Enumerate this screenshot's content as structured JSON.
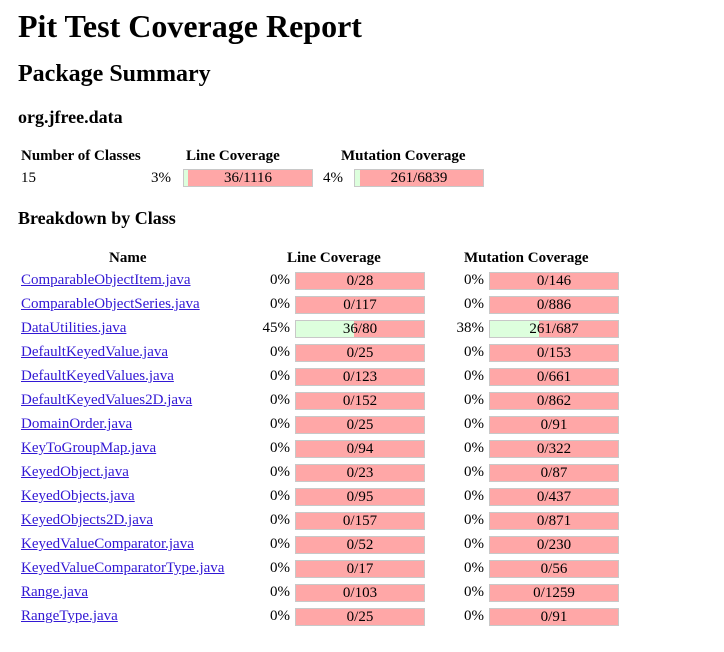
{
  "report_title": "Pit Test Coverage Report",
  "package_summary_heading": "Package Summary",
  "package_name": "org.jfree.data",
  "summary": {
    "headers": {
      "classes": "Number of Classes",
      "line": "Line Coverage",
      "mutation": "Mutation Coverage"
    },
    "classes": "15",
    "line_pct": "3%",
    "line_label": "36/1116",
    "line_fraction": 0.03,
    "mutation_pct": "4%",
    "mutation_label": "261/6839",
    "mutation_fraction": 0.04
  },
  "breakdown_heading": "Breakdown by Class",
  "breakdown_headers": {
    "name": "Name",
    "line": "Line Coverage",
    "mutation": "Mutation Coverage"
  },
  "classes": [
    {
      "name": "ComparableObjectItem.java",
      "line_pct": "0%",
      "line_label": "0/28",
      "line_fraction": 0,
      "mut_pct": "0%",
      "mut_label": "0/146",
      "mut_fraction": 0
    },
    {
      "name": "ComparableObjectSeries.java",
      "line_pct": "0%",
      "line_label": "0/117",
      "line_fraction": 0,
      "mut_pct": "0%",
      "mut_label": "0/886",
      "mut_fraction": 0
    },
    {
      "name": "DataUtilities.java",
      "line_pct": "45%",
      "line_label": "36/80",
      "line_fraction": 0.45,
      "mut_pct": "38%",
      "mut_label": "261/687",
      "mut_fraction": 0.38
    },
    {
      "name": "DefaultKeyedValue.java",
      "line_pct": "0%",
      "line_label": "0/25",
      "line_fraction": 0,
      "mut_pct": "0%",
      "mut_label": "0/153",
      "mut_fraction": 0
    },
    {
      "name": "DefaultKeyedValues.java",
      "line_pct": "0%",
      "line_label": "0/123",
      "line_fraction": 0,
      "mut_pct": "0%",
      "mut_label": "0/661",
      "mut_fraction": 0
    },
    {
      "name": "DefaultKeyedValues2D.java",
      "line_pct": "0%",
      "line_label": "0/152",
      "line_fraction": 0,
      "mut_pct": "0%",
      "mut_label": "0/862",
      "mut_fraction": 0
    },
    {
      "name": "DomainOrder.java",
      "line_pct": "0%",
      "line_label": "0/25",
      "line_fraction": 0,
      "mut_pct": "0%",
      "mut_label": "0/91",
      "mut_fraction": 0
    },
    {
      "name": "KeyToGroupMap.java",
      "line_pct": "0%",
      "line_label": "0/94",
      "line_fraction": 0,
      "mut_pct": "0%",
      "mut_label": "0/322",
      "mut_fraction": 0
    },
    {
      "name": "KeyedObject.java",
      "line_pct": "0%",
      "line_label": "0/23",
      "line_fraction": 0,
      "mut_pct": "0%",
      "mut_label": "0/87",
      "mut_fraction": 0
    },
    {
      "name": "KeyedObjects.java",
      "line_pct": "0%",
      "line_label": "0/95",
      "line_fraction": 0,
      "mut_pct": "0%",
      "mut_label": "0/437",
      "mut_fraction": 0
    },
    {
      "name": "KeyedObjects2D.java",
      "line_pct": "0%",
      "line_label": "0/157",
      "line_fraction": 0,
      "mut_pct": "0%",
      "mut_label": "0/871",
      "mut_fraction": 0
    },
    {
      "name": "KeyedValueComparator.java",
      "line_pct": "0%",
      "line_label": "0/52",
      "line_fraction": 0,
      "mut_pct": "0%",
      "mut_label": "0/230",
      "mut_fraction": 0
    },
    {
      "name": "KeyedValueComparatorType.java",
      "line_pct": "0%",
      "line_label": "0/17",
      "line_fraction": 0,
      "mut_pct": "0%",
      "mut_label": "0/56",
      "mut_fraction": 0
    },
    {
      "name": "Range.java",
      "line_pct": "0%",
      "line_label": "0/103",
      "line_fraction": 0,
      "mut_pct": "0%",
      "mut_label": "0/1259",
      "mut_fraction": 0
    },
    {
      "name": "RangeType.java",
      "line_pct": "0%",
      "line_label": "0/25",
      "line_fraction": 0,
      "mut_pct": "0%",
      "mut_label": "0/91",
      "mut_fraction": 0
    }
  ],
  "colors": {
    "covered": "#ddffdd",
    "uncovered": "#ffa7a7",
    "link": "#3218d4"
  }
}
